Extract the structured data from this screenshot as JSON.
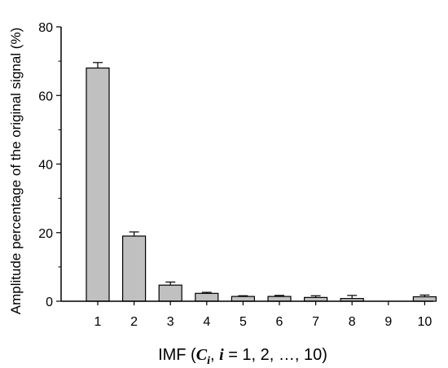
{
  "chart_data": {
    "type": "bar",
    "title": "",
    "xlabel_parts": {
      "prefix": "IMF (",
      "c_symbol": "C",
      "c_sub": "i",
      "sep": ", ",
      "i_symbol": "i",
      "suffix": " = 1, 2, …, 10)"
    },
    "ylabel": "Amplitude percentage of the original signal (%)",
    "categories": [
      "1",
      "2",
      "3",
      "4",
      "5",
      "6",
      "7",
      "8",
      "9",
      "10"
    ],
    "values": [
      68.0,
      19.0,
      4.7,
      2.3,
      1.4,
      1.4,
      1.1,
      0.8,
      0,
      1.3
    ],
    "errors": [
      1.6,
      1.2,
      0.9,
      0.3,
      0.2,
      0.3,
      0.5,
      0.9,
      0,
      0.5
    ],
    "ylim": [
      0,
      80
    ],
    "yticks": [
      0,
      20,
      40,
      60,
      80
    ],
    "bar_color": "#c0c0c0",
    "grid": false
  }
}
